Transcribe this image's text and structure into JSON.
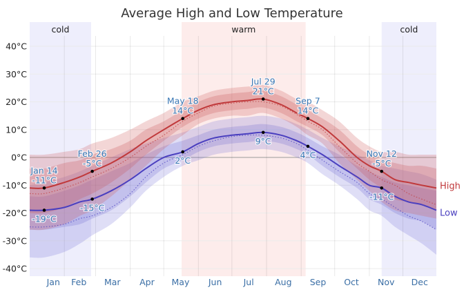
{
  "chart_data": {
    "type": "line",
    "title": "Average High and Low Temperature",
    "xlabel": "",
    "ylabel": "",
    "ylim": [
      -42,
      47
    ],
    "yticks": [
      40,
      30,
      20,
      10,
      0,
      -10,
      -20,
      -30,
      -40
    ],
    "ytick_labels": [
      "40°C",
      "30°C",
      "20°C",
      "10°C",
      "0°C",
      "-10°C",
      "-20°C",
      "-30°C",
      "-40°C"
    ],
    "xlim_day_of_year": [
      1,
      365
    ],
    "month_labels": [
      "Jan",
      "Feb",
      "Mar",
      "Apr",
      "May",
      "Jun",
      "Jul",
      "Aug",
      "Sep",
      "Oct",
      "Nov",
      "Dec"
    ],
    "grid": true,
    "legend": {
      "placement": "right",
      "entries": [
        "High",
        "Low"
      ]
    },
    "colors": {
      "high": "#c0393b",
      "low": "#4a3fbf",
      "cold_band": "#eeeefc",
      "warm_band": "#fdeceb",
      "annotation_text": "#3a78b5"
    },
    "bands": [
      {
        "label": "cold",
        "start_day": 1,
        "end_day": 56
      },
      {
        "label": "warm",
        "start_day": 137,
        "end_day": 248
      },
      {
        "label": "cold",
        "start_day": 316,
        "end_day": 365
      }
    ],
    "days": [
      1,
      14,
      32,
      46,
      57,
      74,
      91,
      105,
      121,
      138,
      152,
      166,
      182,
      196,
      210,
      226,
      240,
      250,
      263,
      278,
      294,
      305,
      316,
      328,
      340,
      352,
      365
    ],
    "series": [
      {
        "name": "High",
        "mean": [
          -11,
          -11,
          -9,
          -7,
          -5,
          -2,
          2,
          6,
          10,
          14,
          17,
          19,
          20,
          20.5,
          21,
          19,
          16,
          14,
          11,
          6,
          0,
          -3,
          -5,
          -8,
          -9,
          -10,
          -11
        ],
        "p25_p75": [
          [
            -20,
            -4
          ],
          [
            -20,
            -4
          ],
          [
            -18,
            -2
          ],
          [
            -15,
            -1
          ],
          [
            -13,
            1
          ],
          [
            -9,
            3
          ],
          [
            -4,
            6
          ],
          [
            1,
            10
          ],
          [
            6,
            13
          ],
          [
            11,
            17
          ],
          [
            14,
            20
          ],
          [
            16,
            22
          ],
          [
            17,
            23
          ],
          [
            17.5,
            23.5
          ],
          [
            18,
            24
          ],
          [
            16,
            22
          ],
          [
            13,
            19
          ],
          [
            11,
            17
          ],
          [
            8,
            14
          ],
          [
            2,
            10
          ],
          [
            -4,
            4
          ],
          [
            -8,
            1
          ],
          [
            -11,
            -1
          ],
          [
            -15,
            -2
          ],
          [
            -16,
            -3
          ],
          [
            -17,
            -3
          ],
          [
            -19,
            -4
          ]
        ],
        "p10_p90": [
          [
            -26,
            1
          ],
          [
            -26,
            1
          ],
          [
            -24,
            2
          ],
          [
            -21,
            3
          ],
          [
            -19,
            5
          ],
          [
            -14,
            7
          ],
          [
            -8,
            10
          ],
          [
            -3,
            13
          ],
          [
            3,
            16
          ],
          [
            8,
            20
          ],
          [
            12,
            22
          ],
          [
            14,
            24
          ],
          [
            15,
            25
          ],
          [
            15,
            25.5
          ],
          [
            16,
            26
          ],
          [
            14,
            24
          ],
          [
            11,
            21
          ],
          [
            8,
            20
          ],
          [
            5,
            17
          ],
          [
            -2,
            13
          ],
          [
            -8,
            7
          ],
          [
            -12,
            4
          ],
          [
            -16,
            2
          ],
          [
            -19,
            2
          ],
          [
            -20,
            1
          ],
          [
            -21,
            1
          ],
          [
            -22,
            1
          ]
        ],
        "forecast_dotted": [
          -13,
          -13,
          -11,
          -9,
          -7,
          -4,
          0,
          4,
          8,
          13,
          16,
          18.5,
          19.5,
          20,
          20,
          18.5,
          15.5,
          13,
          10,
          4,
          -2,
          -5,
          -8,
          -10,
          -13,
          -15,
          -17
        ]
      },
      {
        "name": "Low",
        "mean": [
          -19,
          -19,
          -18,
          -16,
          -15,
          -12,
          -8,
          -4,
          0,
          2,
          5,
          7,
          8,
          8.5,
          9,
          8,
          6,
          4,
          1,
          -3,
          -7,
          -10,
          -11,
          -14,
          -16,
          -17,
          -19
        ],
        "p25_p75": [
          [
            -26,
            -14
          ],
          [
            -26,
            -14
          ],
          [
            -25,
            -12
          ],
          [
            -24,
            -10
          ],
          [
            -22,
            -8
          ],
          [
            -19,
            -5
          ],
          [
            -14,
            -2
          ],
          [
            -9,
            1
          ],
          [
            -4,
            4
          ],
          [
            -1,
            6
          ],
          [
            2,
            8
          ],
          [
            4,
            10
          ],
          [
            5,
            11
          ],
          [
            5.5,
            11.5
          ],
          [
            6,
            12
          ],
          [
            5,
            11
          ],
          [
            3,
            9
          ],
          [
            1,
            7
          ],
          [
            -3,
            4
          ],
          [
            -7,
            1
          ],
          [
            -11,
            -3
          ],
          [
            -15,
            -5
          ],
          [
            -17,
            -7
          ],
          [
            -20,
            -9
          ],
          [
            -22,
            -10
          ],
          [
            -23,
            -11
          ],
          [
            -26,
            -12
          ]
        ],
        "p10_p90": [
          [
            -36,
            -10
          ],
          [
            -36,
            -9
          ],
          [
            -34,
            -7
          ],
          [
            -31,
            -5
          ],
          [
            -28,
            -3
          ],
          [
            -24,
            0
          ],
          [
            -18,
            3
          ],
          [
            -12,
            5
          ],
          [
            -7,
            7
          ],
          [
            -3,
            9
          ],
          [
            -1,
            11
          ],
          [
            1,
            13
          ],
          [
            2,
            14
          ],
          [
            2.5,
            14.5
          ],
          [
            3,
            15
          ],
          [
            2,
            14
          ],
          [
            0,
            12
          ],
          [
            -2,
            10
          ],
          [
            -6,
            7
          ],
          [
            -10,
            4
          ],
          [
            -15,
            1
          ],
          [
            -19,
            -1
          ],
          [
            -21,
            -3
          ],
          [
            -25,
            -4
          ],
          [
            -28,
            -5
          ],
          [
            -31,
            -6
          ],
          [
            -35,
            -8
          ]
        ],
        "forecast_dotted": [
          -25,
          -25,
          -24,
          -22,
          -21,
          -18,
          -13,
          -7,
          -2,
          1,
          4,
          6,
          7.5,
          8,
          8,
          7,
          5,
          2.5,
          -1,
          -5,
          -9,
          -13,
          -15,
          -18,
          -21,
          -23,
          -26
        ]
      }
    ],
    "annotations": [
      {
        "series": "High",
        "day": 14,
        "value": -11,
        "date_label": "Jan 14",
        "value_label": "-11°C",
        "position": "above"
      },
      {
        "series": "Low",
        "day": 14,
        "value": -19,
        "date_label": "",
        "value_label": "-19°C",
        "position": "below"
      },
      {
        "series": "High",
        "day": 57,
        "value": -5,
        "date_label": "Feb 26",
        "value_label": "-5°C",
        "position": "above"
      },
      {
        "series": "Low",
        "day": 57,
        "value": -15,
        "date_label": "",
        "value_label": "-15°C",
        "position": "below"
      },
      {
        "series": "High",
        "day": 138,
        "value": 14,
        "date_label": "May 18",
        "value_label": "14°C",
        "position": "above"
      },
      {
        "series": "Low",
        "day": 138,
        "value": 2,
        "date_label": "",
        "value_label": "2°C",
        "position": "below"
      },
      {
        "series": "High",
        "day": 210,
        "value": 21,
        "date_label": "Jul 29",
        "value_label": "21°C",
        "position": "above"
      },
      {
        "series": "Low",
        "day": 210,
        "value": 9,
        "date_label": "",
        "value_label": "9°C",
        "position": "below"
      },
      {
        "series": "High",
        "day": 250,
        "value": 14,
        "date_label": "Sep 7",
        "value_label": "14°C",
        "position": "above"
      },
      {
        "series": "Low",
        "day": 250,
        "value": 4,
        "date_label": "",
        "value_label": "4°C",
        "position": "below"
      },
      {
        "series": "High",
        "day": 316,
        "value": -5,
        "date_label": "Nov 12",
        "value_label": "-5°C",
        "position": "above"
      },
      {
        "series": "Low",
        "day": 316,
        "value": -11,
        "date_label": "",
        "value_label": "-11°C",
        "position": "below"
      }
    ]
  }
}
